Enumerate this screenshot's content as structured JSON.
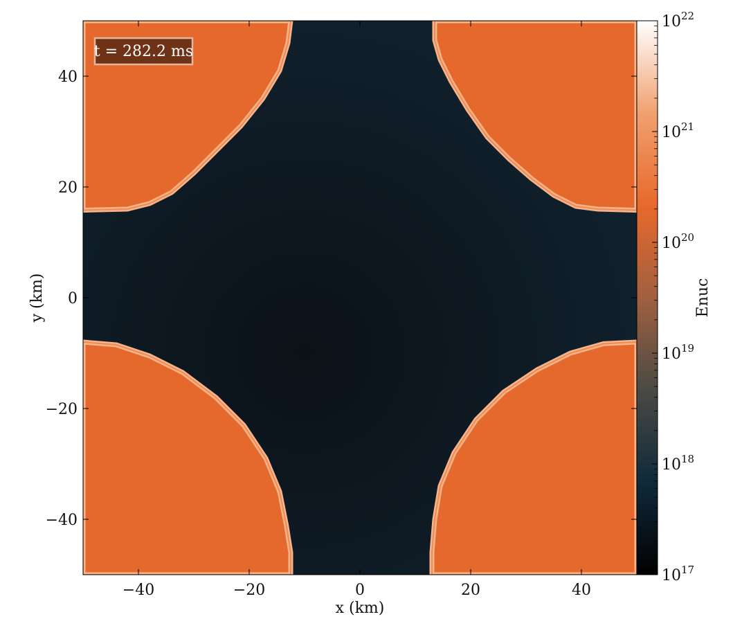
{
  "chart_data": {
    "type": "heatmap",
    "title": "",
    "xlabel": "x  (km)",
    "ylabel": "y  (km)",
    "xlim": [
      -50,
      50
    ],
    "ylim": [
      -50,
      50
    ],
    "x_ticks": [
      -40,
      -20,
      0,
      20,
      40
    ],
    "y_ticks": [
      -40,
      -20,
      0,
      20,
      40
    ],
    "x_tick_labels": [
      "−40",
      "−20",
      "0",
      "20",
      "40"
    ],
    "y_tick_labels": [
      "−40",
      "−20",
      "0",
      "20",
      "40"
    ],
    "annotation": "t = 282.2 ms",
    "colorbar": {
      "label": "Enuc",
      "scale": "log",
      "range": [
        1e+17,
        1e+22
      ],
      "ticks": [
        {
          "value": 1e+17,
          "base": "10",
          "exp": "17"
        },
        {
          "value": 1e+18,
          "base": "10",
          "exp": "18"
        },
        {
          "value": 1e+19,
          "base": "10",
          "exp": "19"
        },
        {
          "value": 1e+20,
          "base": "10",
          "exp": "20"
        },
        {
          "value": 1e+21,
          "base": "10",
          "exp": "21"
        },
        {
          "value": 1e+22,
          "base": "10",
          "exp": "22"
        }
      ],
      "colors": [
        "#000000",
        "#0f2a3a",
        "#4a4a44",
        "#a06040",
        "#e8692c",
        "#f0a070",
        "#ffffff"
      ]
    },
    "regions": [
      {
        "name": "top-left lobe",
        "outline": [
          [
            -50,
            50
          ],
          [
            -12.5,
            50
          ],
          [
            -13,
            46
          ],
          [
            -14.5,
            41
          ],
          [
            -17.5,
            36
          ],
          [
            -21.5,
            31
          ],
          [
            -26,
            26.5
          ],
          [
            -30,
            22.5
          ],
          [
            -34,
            19
          ],
          [
            -38,
            17
          ],
          [
            -42,
            16
          ],
          [
            -50,
            15.8
          ]
        ],
        "value": 2e+20
      },
      {
        "name": "top-right lobe",
        "outline": [
          [
            13.5,
            50
          ],
          [
            50,
            50
          ],
          [
            50,
            15.8
          ],
          [
            43,
            16
          ],
          [
            39,
            16.5
          ],
          [
            35,
            18.5
          ],
          [
            31,
            21.5
          ],
          [
            27,
            25
          ],
          [
            23,
            29
          ],
          [
            19.5,
            34
          ],
          [
            16.5,
            39
          ],
          [
            14.5,
            43
          ],
          [
            13.5,
            46.5
          ]
        ],
        "value": 2e+20
      },
      {
        "name": "bottom-left lobe",
        "outline": [
          [
            -50,
            -8
          ],
          [
            -44,
            -8.5
          ],
          [
            -38,
            -10.5
          ],
          [
            -32,
            -13.5
          ],
          [
            -26,
            -18
          ],
          [
            -21,
            -23
          ],
          [
            -17,
            -29
          ],
          [
            -14.5,
            -35
          ],
          [
            -13.3,
            -41
          ],
          [
            -12.5,
            -46
          ],
          [
            -12.5,
            -50
          ],
          [
            -50,
            -50
          ]
        ],
        "value": 2e+20
      },
      {
        "name": "bottom-right lobe",
        "outline": [
          [
            50,
            -8
          ],
          [
            44,
            -8.3
          ],
          [
            38,
            -10
          ],
          [
            32,
            -13
          ],
          [
            26,
            -17
          ],
          [
            21,
            -22
          ],
          [
            17,
            -28
          ],
          [
            14.5,
            -34
          ],
          [
            13.5,
            -40
          ],
          [
            13,
            -46
          ],
          [
            13,
            -50
          ],
          [
            50,
            -50
          ]
        ],
        "value": 2e+20
      }
    ],
    "background_value": 3e+17,
    "grid": false
  },
  "colors": {
    "background_field": "#0c141c",
    "burning_region": "#e5692d",
    "burning_rim": "#f6b48a",
    "annotation_box": "#6e3217",
    "annotation_border": "#e3b79d",
    "annotation_text": "#ffffff"
  }
}
